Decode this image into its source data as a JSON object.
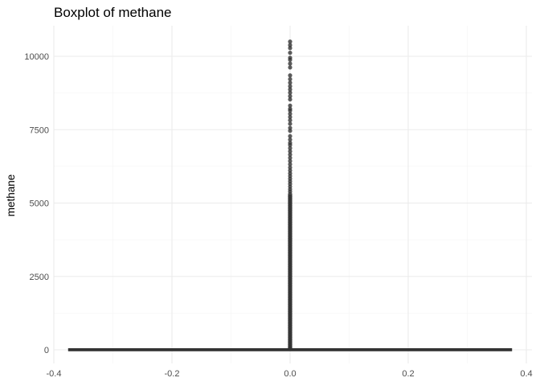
{
  "chart_data": {
    "type": "boxplot",
    "title": "Boxplot of methane",
    "xlabel": "",
    "ylabel": "methane",
    "xlim": [
      -0.4,
      0.4
    ],
    "ylim": [
      0,
      10500
    ],
    "x_ticks": [
      -0.4,
      -0.2,
      0.0,
      0.2,
      0.4
    ],
    "x_tick_labels": [
      "-0.4",
      "-0.2",
      "0.0",
      "0.2",
      "0.4"
    ],
    "y_ticks": [
      0,
      2500,
      5000,
      7500,
      10000
    ],
    "y_tick_labels": [
      "0",
      "2500",
      "5000",
      "7500",
      "10000"
    ],
    "grid": true,
    "box": {
      "x_center": 0.0,
      "x_range": [
        -0.375,
        0.375
      ],
      "q1": 0,
      "median": 0,
      "q3": 5,
      "whisker_low": 0,
      "whisker_high": 12
    },
    "outliers": [
      10500,
      10380,
      10280,
      10120,
      9950,
      9880,
      9750,
      9620,
      9350,
      9220,
      9100,
      8980,
      8870,
      8760,
      8640,
      8530,
      8320,
      8210,
      8150,
      8040,
      7930,
      7820,
      7700,
      7560,
      7460,
      7280,
      7160,
      7050,
      6980,
      6870,
      6760,
      6650,
      6540,
      6430,
      6320,
      6210,
      6110,
      6010,
      5920,
      5830,
      5740,
      5650,
      5560,
      5470,
      5390,
      5310,
      5230,
      5150,
      5070,
      4990,
      4910,
      4830,
      4750,
      4670,
      4590,
      4510,
      4430,
      4350,
      4270,
      4190,
      4110,
      4030,
      3950,
      3870,
      3790,
      3710,
      3630,
      3550,
      3470,
      3390,
      3310,
      3230,
      3150,
      3070,
      2990,
      2910,
      2830,
      2750,
      2670,
      2590,
      2510,
      2430,
      2350,
      2270,
      2190,
      2110,
      2030,
      1950,
      1870,
      1790,
      1710,
      1630,
      1550,
      1470,
      1390,
      1310,
      1230,
      1150,
      1070,
      990,
      910,
      830,
      750,
      670,
      590,
      510,
      430,
      350,
      270,
      190,
      110,
      60
    ],
    "colors": {
      "box_line": "#333333",
      "outlier": "#333333",
      "grid": "#ebebeb",
      "background": "#ffffff"
    }
  }
}
